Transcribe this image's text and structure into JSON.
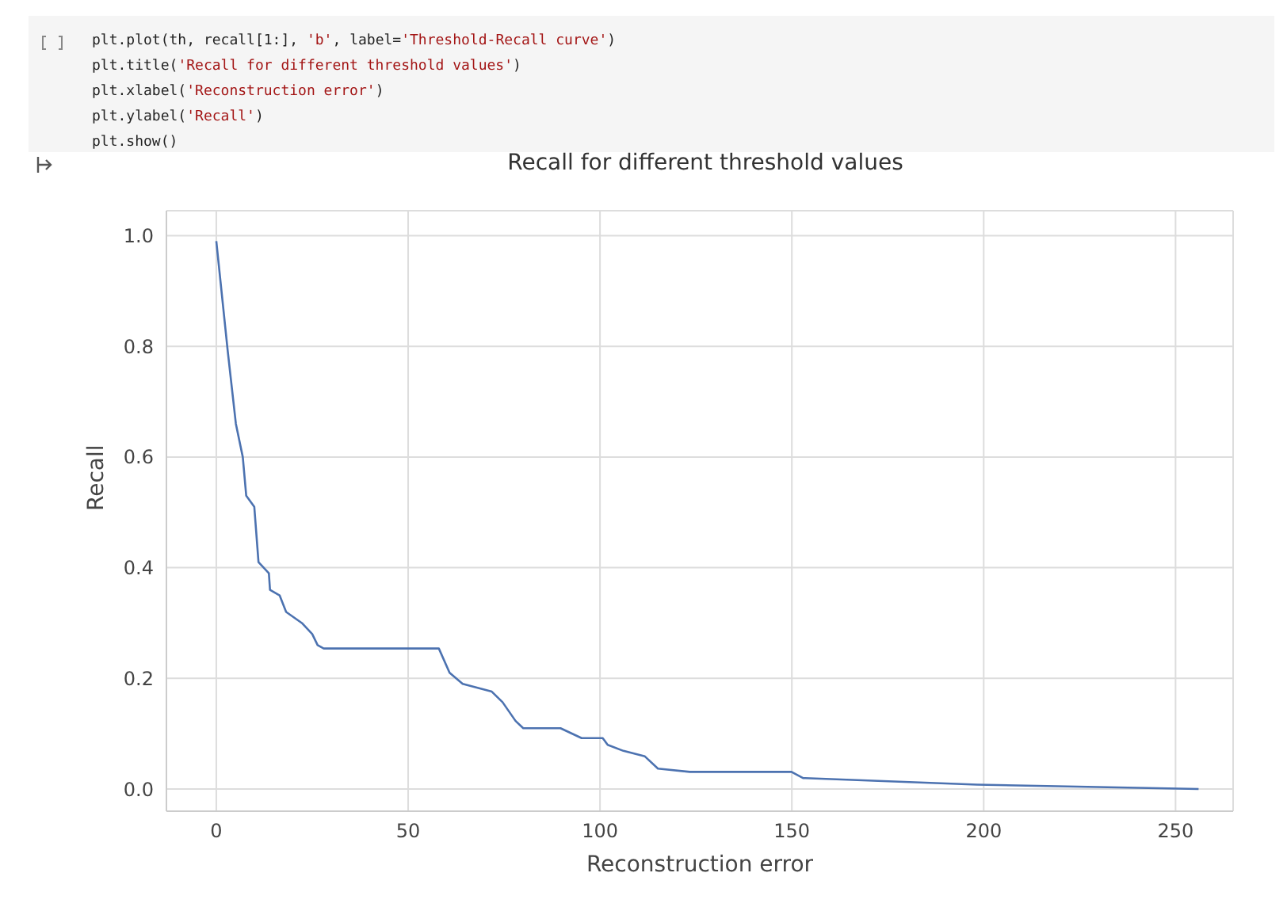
{
  "chart_data": {
    "type": "line",
    "title": "Recall for different threshold values",
    "xlabel": "Reconstruction error",
    "ylabel": "Recall",
    "annotations": [
      "plt.plot(th, recall[1:], 'b', label='Threshold-Recall curve')",
      "plt.title('Recall for different threshold values')",
      "plt.xlabel('Reconstruction error')",
      "plt.ylabel('Recall')",
      "plt.show()"
    ],
    "x": [
      0,
      3.0,
      5.1,
      6.9,
      7.8,
      9.9,
      11.0,
      13.7,
      14.0,
      16.5,
      18.2,
      22.3,
      25.0,
      26.4,
      28.0,
      58.0,
      60.8,
      64.2,
      71.8,
      74.6,
      78,
      80,
      89.7,
      95.2,
      100.7,
      102,
      106.1,
      111.7,
      115.1,
      123.4,
      149.9,
      152.9,
      198.3,
      256
    ],
    "series": [
      {
        "color": "#4c72b0",
        "values": [
          0.99,
          0.79,
          0.66,
          0.6,
          0.53,
          0.51,
          0.41,
          0.39,
          0.36,
          0.35,
          0.32,
          0.3,
          0.28,
          0.26,
          0.254,
          0.254,
          0.21,
          0.19,
          0.176,
          0.157,
          0.123,
          0.11,
          0.11,
          0.092,
          0.092,
          0.08,
          0.069,
          0.059,
          0.037,
          0.031,
          0.031,
          0.02,
          0.008,
          0.0
        ]
      }
    ],
    "xlim": [
      -13,
      265
    ],
    "ylim": [
      -0.04,
      1.045
    ],
    "xticks": [
      0,
      50,
      100,
      150,
      200,
      250
    ],
    "yticks": [
      {
        "value": 0,
        "label": "0.0"
      },
      0.2,
      0.4,
      0.6,
      0.8,
      {
        "value": 1,
        "label": "1.0"
      }
    ],
    "grid": true,
    "marker": "none",
    "line_style": "solid"
  }
}
